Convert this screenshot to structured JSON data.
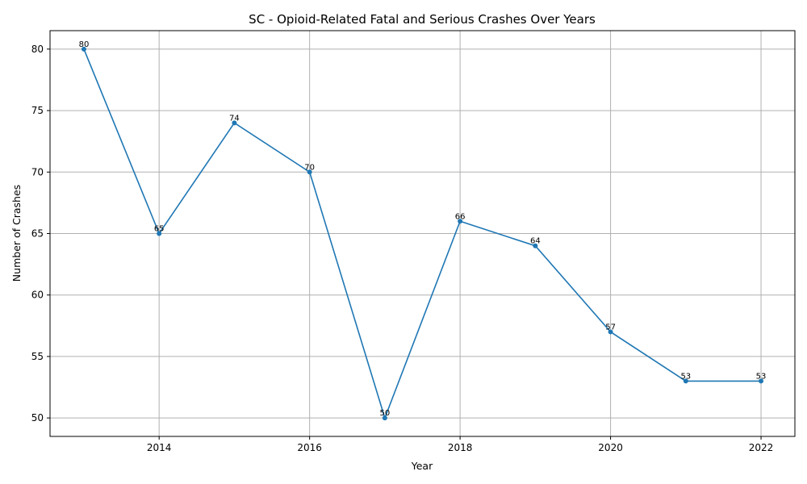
{
  "chart_data": {
    "type": "line",
    "title": "SC - Opioid-Related Fatal and Serious Crashes Over Years",
    "xlabel": "Year",
    "ylabel": "Number of Crashes",
    "x": [
      2013,
      2014,
      2015,
      2016,
      2017,
      2018,
      2019,
      2020,
      2021,
      2022
    ],
    "values": [
      80,
      65,
      74,
      70,
      50,
      66,
      64,
      57,
      53,
      53
    ],
    "xlim": [
      2012.55,
      2022.45
    ],
    "ylim": [
      48.5,
      81.5
    ],
    "xticks": [
      2014,
      2016,
      2018,
      2020,
      2022
    ],
    "yticks": [
      50,
      55,
      60,
      65,
      70,
      75,
      80
    ],
    "grid": true,
    "line_color": "#1f77b4",
    "marker": "circle"
  }
}
